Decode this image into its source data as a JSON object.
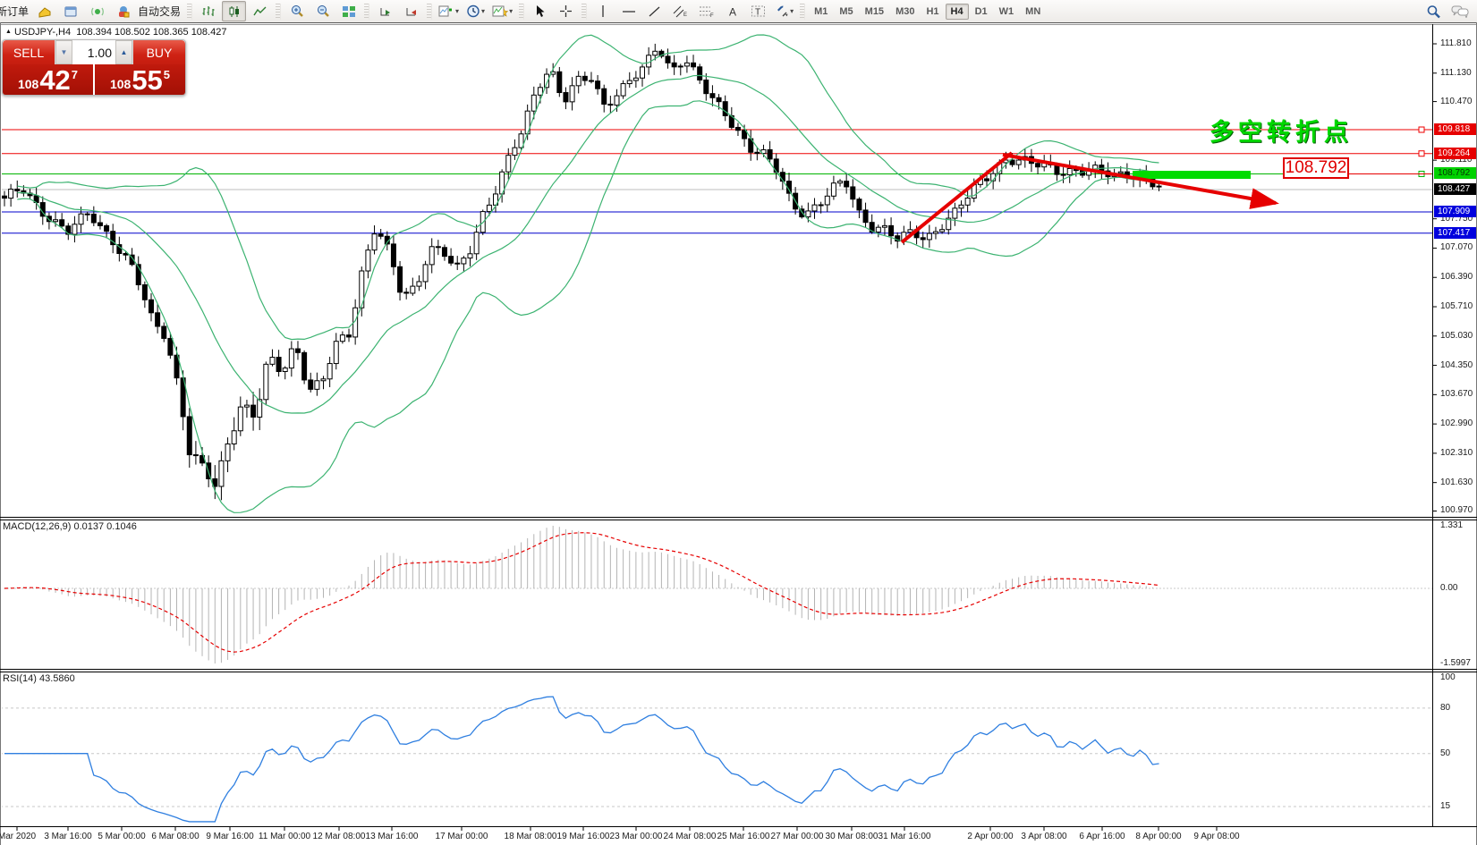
{
  "toolbar": {
    "new_order_label": "新订单",
    "auto_trading_label": "自动交易",
    "timeframes": [
      "M1",
      "M5",
      "M15",
      "M30",
      "H1",
      "H4",
      "D1",
      "W1",
      "MN"
    ],
    "active_timeframe": "H4"
  },
  "trade_panel": {
    "sell_label": "SELL",
    "buy_label": "BUY",
    "volume": "1.00",
    "sell_price": {
      "prefix": "108",
      "big": "42",
      "sup": "7"
    },
    "buy_price": {
      "prefix": "108",
      "big": "55",
      "sup": "5"
    }
  },
  "chart": {
    "symbol_marker": "▲",
    "symbol": "USDJPY-,H4",
    "ohlc_display": "108.394 108.502 108.365 108.427",
    "axis_ticks": [
      "111.810",
      "111.130",
      "110.470",
      "109.110",
      "107.750",
      "107.070",
      "106.390",
      "105.710",
      "105.030",
      "104.350",
      "103.670",
      "102.990",
      "102.310",
      "101.630",
      "100.970"
    ],
    "hlines": [
      {
        "price": "109.818",
        "line_color": "#ee0000",
        "tag_bg": "#e60000",
        "tag_fg": "#ffffff",
        "marker": true
      },
      {
        "price": "109.264",
        "line_color": "#ee0000",
        "tag_bg": "#e60000",
        "tag_fg": "#ffffff",
        "marker": true
      },
      {
        "price": "108.792",
        "line_color": "#00b400",
        "tag_bg": "#00d200",
        "tag_fg": "#063306",
        "marker": true
      },
      {
        "price": "108.427",
        "line_color": "#bdbdbd",
        "tag_bg": "#000000",
        "tag_fg": "#ffffff",
        "marker": false
      },
      {
        "price": "107.909",
        "line_color": "#0000cc",
        "tag_bg": "#0000dd",
        "tag_fg": "#ffffff",
        "marker": false
      },
      {
        "price": "107.417",
        "line_color": "#0000cc",
        "tag_bg": "#0000dd",
        "tag_fg": "#ffffff",
        "marker": false
      }
    ],
    "annotations": {
      "turning_point_text": "多空转折点",
      "price_callout": "108.792"
    },
    "bollinger_color": "#3cb371",
    "chart_data": {
      "type": "candlestick",
      "symbol": "USDJPY",
      "period": "H4",
      "price_anchors": [
        [
          0,
          108.1
        ],
        [
          25,
          108.45
        ],
        [
          50,
          107.9
        ],
        [
          75,
          107.4
        ],
        [
          100,
          107.9
        ],
        [
          125,
          107.3
        ],
        [
          150,
          106.5
        ],
        [
          170,
          105.4
        ],
        [
          185,
          105.1
        ],
        [
          200,
          103.8
        ],
        [
          212,
          102.3
        ],
        [
          228,
          101.9
        ],
        [
          240,
          101.55
        ],
        [
          255,
          102.6
        ],
        [
          270,
          103.5
        ],
        [
          285,
          103.1
        ],
        [
          300,
          104.5
        ],
        [
          315,
          104.2
        ],
        [
          330,
          104.9
        ],
        [
          345,
          103.8
        ],
        [
          360,
          103.9
        ],
        [
          375,
          104.8
        ],
        [
          390,
          105.1
        ],
        [
          405,
          106.6
        ],
        [
          420,
          107.6
        ],
        [
          435,
          106.9
        ],
        [
          450,
          105.9
        ],
        [
          465,
          106.2
        ],
        [
          480,
          107.1
        ],
        [
          495,
          107.0
        ],
        [
          510,
          106.5
        ],
        [
          525,
          107.0
        ],
        [
          540,
          107.9
        ],
        [
          555,
          108.5
        ],
        [
          570,
          109.2
        ],
        [
          585,
          109.8
        ],
        [
          600,
          110.8
        ],
        [
          615,
          111.3
        ],
        [
          630,
          110.5
        ],
        [
          645,
          110.9
        ],
        [
          660,
          111.0
        ],
        [
          675,
          110.4
        ],
        [
          690,
          110.7
        ],
        [
          705,
          111.0
        ],
        [
          720,
          111.2
        ],
        [
          735,
          111.75
        ],
        [
          750,
          111.2
        ],
        [
          765,
          111.55
        ],
        [
          780,
          111.0
        ],
        [
          795,
          110.5
        ],
        [
          810,
          110.2
        ],
        [
          825,
          109.8
        ],
        [
          840,
          109.4
        ],
        [
          855,
          109.2
        ],
        [
          870,
          108.8
        ],
        [
          885,
          108.1
        ],
        [
          900,
          107.9
        ],
        [
          915,
          108.1
        ],
        [
          930,
          108.4
        ],
        [
          945,
          108.6
        ],
        [
          960,
          107.9
        ],
        [
          975,
          107.6
        ],
        [
          990,
          107.5
        ],
        [
          1005,
          107.2
        ],
        [
          1020,
          107.45
        ],
        [
          1035,
          107.3
        ],
        [
          1050,
          107.6
        ],
        [
          1065,
          107.8
        ],
        [
          1080,
          108.2
        ],
        [
          1095,
          108.6
        ],
        [
          1110,
          108.9
        ],
        [
          1125,
          109.15
        ],
        [
          1140,
          109.05
        ],
        [
          1155,
          109.0
        ],
        [
          1170,
          109.0
        ],
        [
          1185,
          108.9
        ],
        [
          1200,
          108.85
        ],
        [
          1215,
          108.8
        ],
        [
          1230,
          108.85
        ],
        [
          1245,
          108.8
        ],
        [
          1260,
          108.85
        ],
        [
          1275,
          108.7
        ],
        [
          1290,
          108.5
        ],
        [
          1300,
          108.43
        ]
      ]
    }
  },
  "macd": {
    "label": "MACD(12,26,9) 0.0137 0.1046",
    "axis": {
      "max": "1.331",
      "zero": "0.00",
      "min": "-1.5997"
    }
  },
  "rsi": {
    "label": "RSI(14) 43.5860",
    "axis": [
      "100",
      "80",
      "50",
      "15"
    ],
    "levels": [
      80,
      50,
      15
    ]
  },
  "time_axis": {
    "labels": [
      "Mar 2020",
      "3 Mar 16:00",
      "5 Mar 00:00",
      "6 Mar 08:00",
      "9 Mar 16:00",
      "11 Mar 00:00",
      "12 Mar 08:00",
      "13 Mar 16:00",
      "17 Mar 00:00",
      "18 Mar 08:00",
      "19 Mar 16:00",
      "23 Mar 00:00",
      "24 Mar 08:00",
      "25 Mar 16:00",
      "27 Mar 00:00",
      "30 Mar 08:00",
      "31 Mar 16:00",
      "2 Apr 00:00",
      "3 Apr 08:00",
      "6 Apr 16:00",
      "8 Apr 00:00",
      "9 Apr 08:00"
    ]
  }
}
